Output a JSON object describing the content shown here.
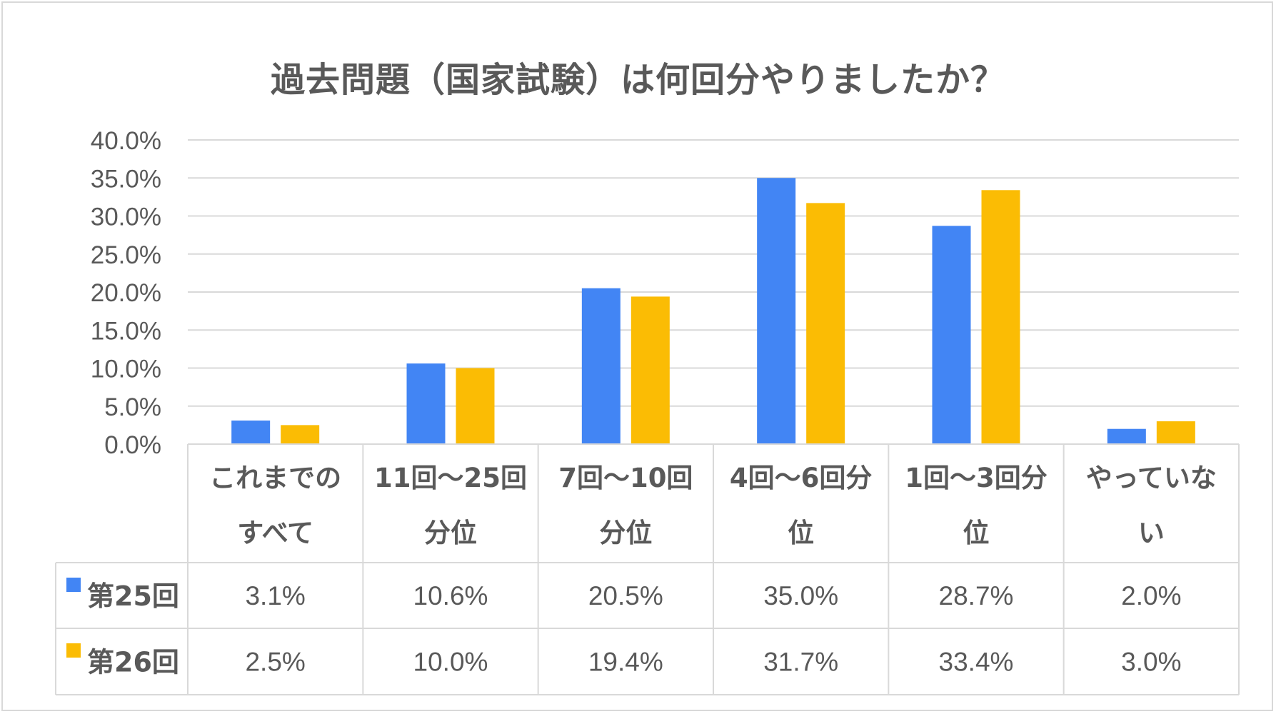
{
  "chart_data": {
    "type": "bar",
    "title": "過去問題（国家試験）は何回分やりましたか？",
    "categories": [
      [
        "これまでの",
        "すべて"
      ],
      [
        "11回〜25回",
        "分位"
      ],
      [
        "7回〜10回",
        "分位"
      ],
      [
        "4回〜6回分",
        "位"
      ],
      [
        "1回〜3回分",
        "位"
      ],
      [
        "やっていな",
        "い"
      ]
    ],
    "series": [
      {
        "name": "第25回",
        "color": "#4285f4",
        "values": [
          3.1,
          10.6,
          20.5,
          35.0,
          28.7,
          2.0
        ],
        "labels": [
          "3.1%",
          "10.6%",
          "20.5%",
          "35.0%",
          "28.7%",
          "2.0%"
        ]
      },
      {
        "name": "第26回",
        "color": "#fbbc04",
        "values": [
          2.5,
          10.0,
          19.4,
          31.7,
          33.4,
          3.0
        ],
        "labels": [
          "2.5%",
          "10.0%",
          "19.4%",
          "31.7%",
          "33.4%",
          "3.0%"
        ]
      }
    ],
    "ylim": [
      0,
      40
    ],
    "yticks": [
      "0.0%",
      "5.0%",
      "10.0%",
      "15.0%",
      "20.0%",
      "25.0%",
      "30.0%",
      "35.0%",
      "40.0%"
    ],
    "grid": true,
    "legend": "data-table"
  }
}
